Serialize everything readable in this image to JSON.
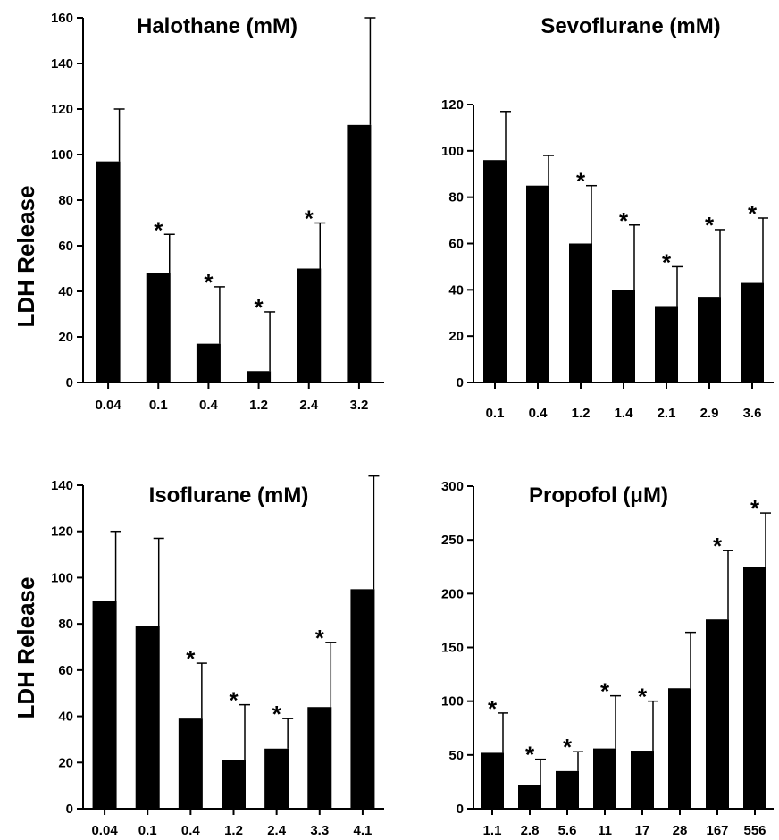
{
  "ylabel": "LDH Release",
  "chart_data": [
    {
      "type": "bar",
      "title": "Halothane (mM)",
      "ylabel": "LDH Release",
      "xlabel": "",
      "categories": [
        "0.04",
        "0.1",
        "0.4",
        "1.2",
        "2.4",
        "3.2"
      ],
      "values": [
        97,
        48,
        17,
        5,
        50,
        113
      ],
      "errors": [
        23,
        17,
        25,
        26,
        20,
        47
      ],
      "significant": [
        false,
        true,
        true,
        true,
        true,
        false
      ],
      "ylim": [
        0,
        160
      ],
      "yticks": [
        0,
        20,
        40,
        60,
        80,
        100,
        120,
        140,
        160
      ],
      "star_label": "*"
    },
    {
      "type": "bar",
      "title": "Sevoflurane (mM)",
      "xlabel": "",
      "categories": [
        "0.1",
        "0.4",
        "1.2",
        "1.4",
        "2.1",
        "2.9",
        "3.6"
      ],
      "values": [
        96,
        85,
        60,
        40,
        33,
        37,
        43
      ],
      "errors": [
        21,
        13,
        25,
        28,
        17,
        29,
        28
      ],
      "significant": [
        false,
        false,
        true,
        true,
        true,
        true,
        true
      ],
      "ylim": [
        0,
        120
      ],
      "yticks": [
        0,
        20,
        40,
        60,
        80,
        100,
        120
      ],
      "star_label": "*"
    },
    {
      "type": "bar",
      "title": "Isoflurane (mM)",
      "ylabel": "LDH Release",
      "xlabel": "",
      "categories": [
        "0.04",
        "0.1",
        "0.4",
        "1.2",
        "2.4",
        "3.3",
        "4.1"
      ],
      "values": [
        90,
        79,
        39,
        21,
        26,
        44,
        95
      ],
      "errors": [
        30,
        38,
        24,
        24,
        13,
        28,
        49
      ],
      "significant": [
        false,
        false,
        true,
        true,
        true,
        true,
        false
      ],
      "ylim": [
        0,
        140
      ],
      "yticks": [
        0,
        20,
        40,
        60,
        80,
        100,
        120,
        140
      ],
      "star_label": "*"
    },
    {
      "type": "bar",
      "title": "Propofol (μM)",
      "xlabel": "",
      "categories": [
        "1.1",
        "2.8",
        "5.6",
        "11",
        "17",
        "28",
        "167",
        "556"
      ],
      "values": [
        52,
        22,
        35,
        56,
        54,
        112,
        176,
        225
      ],
      "errors": [
        37,
        24,
        18,
        49,
        46,
        52,
        64,
        50
      ],
      "significant": [
        true,
        true,
        true,
        true,
        true,
        false,
        true,
        true
      ],
      "ylim": [
        0,
        300
      ],
      "yticks": [
        0,
        50,
        100,
        150,
        200,
        250,
        300
      ],
      "star_label": "*"
    }
  ]
}
